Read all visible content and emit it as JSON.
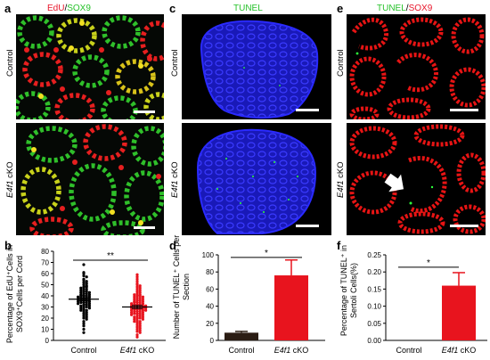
{
  "figure": {
    "panels": {
      "a": {
        "letter": "a",
        "title_edu": "EdU",
        "title_sep": "/",
        "title_sox": "SOX9",
        "row1": "Control",
        "row2_gene": "E4f1",
        "row2_suffix": " cKO"
      },
      "c": {
        "letter": "c",
        "title": "TUNEL",
        "row1": "Control",
        "row2_gene": "E4f1",
        "row2_suffix": " cKO"
      },
      "e": {
        "letter": "e",
        "title_tunel": "TUNEL",
        "title_sep": "/",
        "title_sox": "SOX9",
        "row1": "Control",
        "row2_gene": "E4f1",
        "row2_suffix": " cKO"
      },
      "b": {
        "letter": "b",
        "ylabel_line1": "Percentage of EdU⁺Cells in",
        "ylabel_line2": "SOX9⁺Cells per Cord"
      },
      "d": {
        "letter": "d",
        "ylabel_line1": "Number of TUNEL⁺ Cells per",
        "ylabel_line2": "Section"
      },
      "f": {
        "letter": "f",
        "ylabel_line1": "Percentage of TUNEL⁺ in",
        "ylabel_line2": "Sertoli Cells(%)"
      }
    },
    "colors": {
      "edu_red": "#e8162b",
      "sox9_green": "#27c22b",
      "dapi_blue": "#1a1ae0",
      "control_dark": "#2b1d14",
      "cko_red": "#e8141e",
      "scatter_red": "#e8141e"
    }
  },
  "chart_data": [
    {
      "panel": "b",
      "type": "scatter",
      "categories": [
        "Control",
        "E4f1 cKO"
      ],
      "ylim": [
        0,
        80
      ],
      "yticks": [
        0,
        10,
        20,
        30,
        40,
        50,
        60,
        70,
        80
      ],
      "means": [
        37,
        30
      ],
      "sem": [
        1.5,
        1.4
      ],
      "series": [
        {
          "values": [
            68,
            61,
            60,
            58,
            57,
            55,
            54,
            53,
            52,
            51,
            50,
            49,
            48,
            48,
            47,
            46,
            46,
            45,
            44,
            44,
            43,
            43,
            42,
            42,
            41,
            41,
            40,
            40,
            40,
            39,
            39,
            38,
            38,
            38,
            37,
            37,
            36,
            36,
            36,
            35,
            35,
            34,
            34,
            34,
            33,
            33,
            32,
            32,
            31,
            31,
            30,
            30,
            29,
            29,
            28,
            27,
            27,
            26,
            25,
            24,
            23,
            22,
            21,
            20,
            19,
            17,
            15,
            13,
            10,
            7
          ]
        },
        {
          "values": [
            59,
            57,
            55,
            53,
            51,
            50,
            49,
            48,
            47,
            46,
            45,
            44,
            43,
            42,
            41,
            41,
            40,
            40,
            39,
            39,
            38,
            38,
            37,
            37,
            36,
            36,
            35,
            35,
            34,
            34,
            34,
            33,
            33,
            32,
            32,
            32,
            31,
            31,
            31,
            30,
            30,
            30,
            29,
            29,
            29,
            28,
            28,
            28,
            27,
            27,
            27,
            26,
            26,
            26,
            25,
            25,
            24,
            24,
            24,
            23,
            23,
            22,
            22,
            21,
            21,
            20,
            20,
            19,
            19,
            18,
            17,
            17,
            16,
            15,
            14,
            13,
            12,
            11,
            10,
            9,
            8,
            7,
            5,
            3
          ]
        }
      ],
      "significance": "**"
    },
    {
      "panel": "d",
      "type": "bar",
      "categories": [
        "Control",
        "E4f1 cKO"
      ],
      "values": [
        9,
        76
      ],
      "errors": [
        1.5,
        18
      ],
      "ylim": [
        0,
        100
      ],
      "yticks": [
        0,
        20,
        40,
        60,
        80,
        100
      ],
      "significance": "*"
    },
    {
      "panel": "f",
      "type": "bar",
      "categories": [
        "Control",
        "E4f1 cKO"
      ],
      "values": [
        0,
        0.16
      ],
      "errors": [
        0,
        0.038
      ],
      "ylim": [
        0,
        0.25
      ],
      "yticks": [
        0.0,
        0.05,
        0.1,
        0.15,
        0.2,
        0.25
      ],
      "yticklabels": [
        "0.00",
        "0.05",
        "0.10",
        "0.15",
        "0.20",
        "0.25"
      ],
      "significance": "*"
    }
  ]
}
